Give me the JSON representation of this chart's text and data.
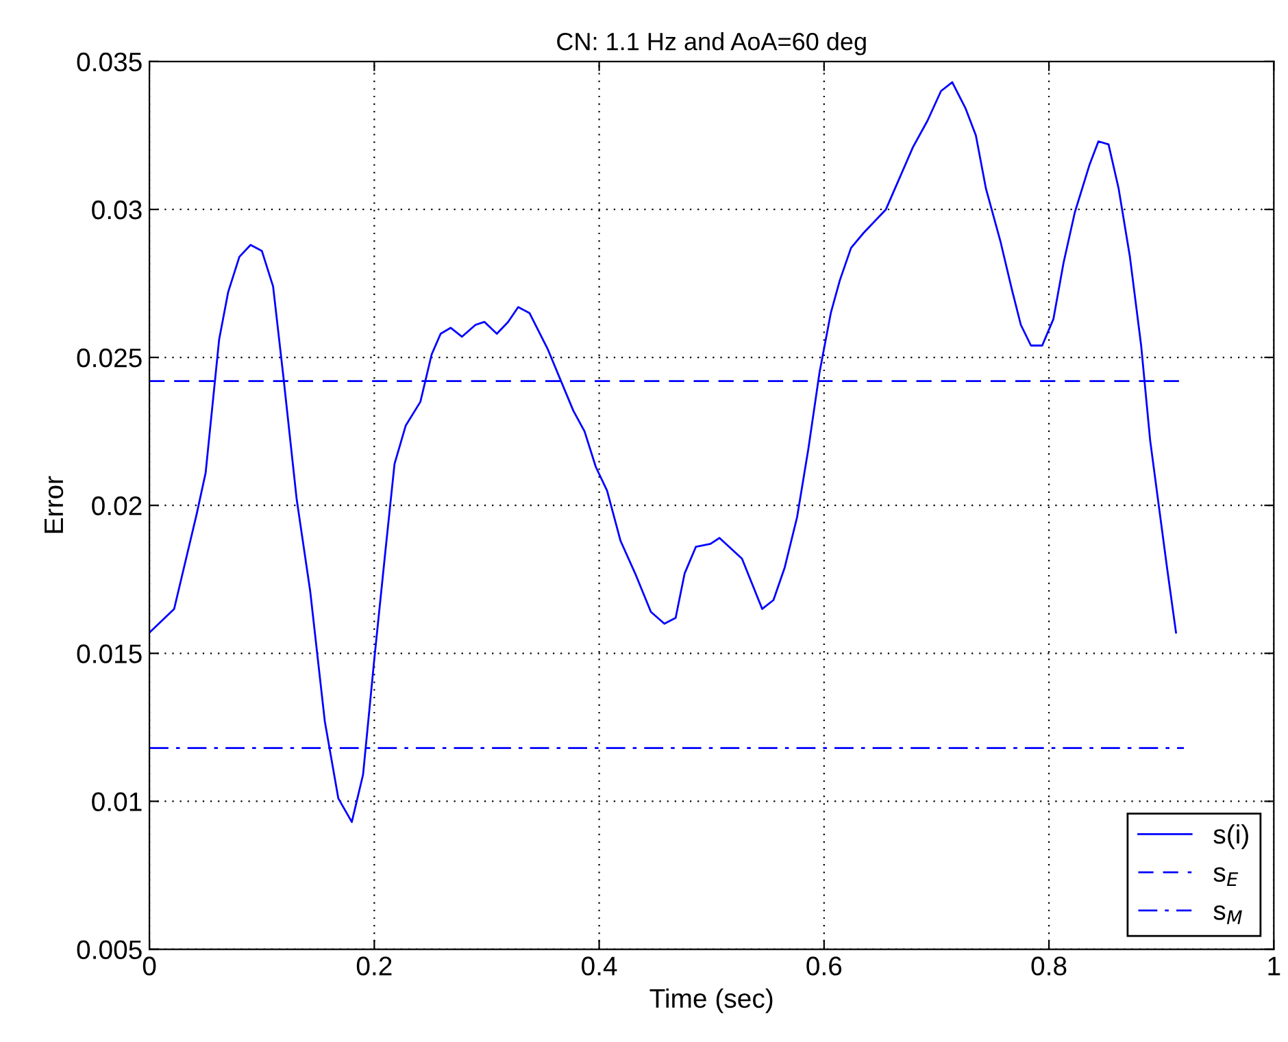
{
  "chart_data": {
    "type": "line",
    "title": "CN: 1.1 Hz and AoA=60 deg",
    "xlabel": "Time (sec)",
    "ylabel": "Error",
    "xlim": [
      0,
      1
    ],
    "ylim": [
      0.005,
      0.035
    ],
    "xticks": [
      0,
      0.2,
      0.4,
      0.6,
      0.8,
      1
    ],
    "yticks": [
      0.005,
      0.01,
      0.015,
      0.02,
      0.025,
      0.03,
      0.035
    ],
    "grid": true,
    "legend": "bottom right",
    "series": [
      {
        "name": "s(i)",
        "color": "#0000ff",
        "line_style": "solid",
        "x": [
          0,
          0.022,
          0.042,
          0.05,
          0.062,
          0.07,
          0.08,
          0.09,
          0.1,
          0.11,
          0.119,
          0.131,
          0.143,
          0.156,
          0.168,
          0.18,
          0.19,
          0.2,
          0.21,
          0.218,
          0.228,
          0.241,
          0.251,
          0.259,
          0.268,
          0.278,
          0.29,
          0.298,
          0.309,
          0.319,
          0.328,
          0.338,
          0.354,
          0.377,
          0.387,
          0.397,
          0.407,
          0.419,
          0.432,
          0.446,
          0.458,
          0.468,
          0.476,
          0.486,
          0.499,
          0.507,
          0.527,
          0.545,
          0.555,
          0.565,
          0.576,
          0.586,
          0.596,
          0.606,
          0.614,
          0.624,
          0.635,
          0.655,
          0.663,
          0.679,
          0.692,
          0.704,
          0.714,
          0.726,
          0.735,
          0.744,
          0.757,
          0.767,
          0.775,
          0.784,
          0.794,
          0.804,
          0.813,
          0.823,
          0.836,
          0.844,
          0.853,
          0.862,
          0.872,
          0.882,
          0.89,
          0.898,
          0.905,
          0.913
        ],
        "values": [
          0.0157,
          0.0165,
          0.0197,
          0.0211,
          0.0256,
          0.0272,
          0.0284,
          0.0288,
          0.0286,
          0.0274,
          0.0244,
          0.0202,
          0.0171,
          0.0127,
          0.0101,
          0.0093,
          0.0109,
          0.0148,
          0.0185,
          0.0214,
          0.0227,
          0.0235,
          0.0251,
          0.0258,
          0.026,
          0.0257,
          0.0261,
          0.0262,
          0.0258,
          0.0262,
          0.0267,
          0.0265,
          0.0253,
          0.0232,
          0.0225,
          0.0213,
          0.0205,
          0.0188,
          0.0177,
          0.0164,
          0.016,
          0.0162,
          0.0177,
          0.0186,
          0.0187,
          0.0189,
          0.0182,
          0.0165,
          0.0168,
          0.0179,
          0.0196,
          0.0219,
          0.0245,
          0.0265,
          0.0276,
          0.0287,
          0.0292,
          0.03,
          0.0307,
          0.0321,
          0.033,
          0.034,
          0.0343,
          0.0334,
          0.0325,
          0.0307,
          0.0289,
          0.0273,
          0.0261,
          0.0254,
          0.0254,
          0.0263,
          0.0282,
          0.0299,
          0.0315,
          0.0323,
          0.0322,
          0.0307,
          0.0284,
          0.0254,
          0.0222,
          0.0199,
          0.0179,
          0.0157
        ]
      },
      {
        "name": "s$_{E}$",
        "color": "#0000ff",
        "line_style": "dashed",
        "x": [
          0,
          0.92
        ],
        "values": [
          0.0242,
          0.0242
        ]
      },
      {
        "name": "s$_{M}$",
        "color": "#0000ff",
        "line_style": "dashdot",
        "x": [
          0,
          0.92
        ],
        "values": [
          0.0118,
          0.0118
        ]
      }
    ]
  }
}
